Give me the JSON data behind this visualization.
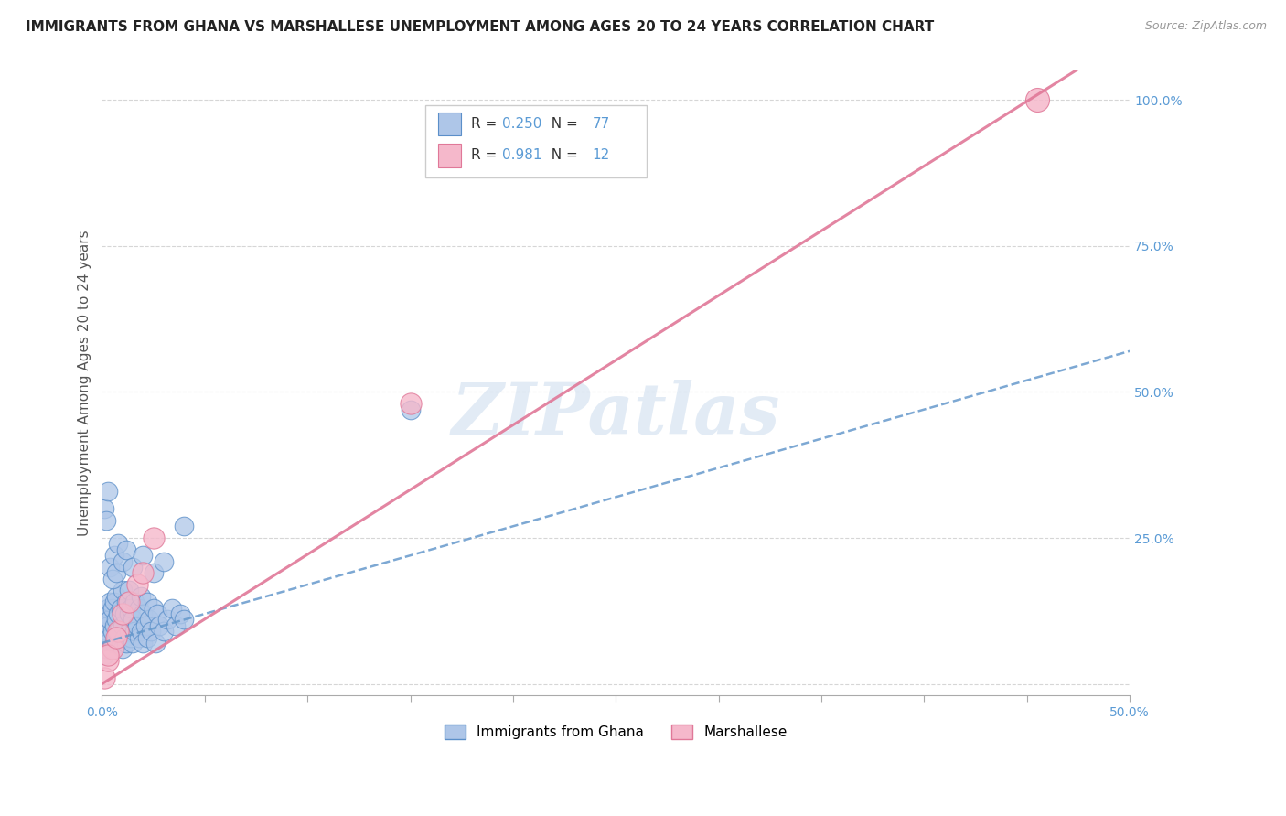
{
  "title": "IMMIGRANTS FROM GHANA VS MARSHALLESE UNEMPLOYMENT AMONG AGES 20 TO 24 YEARS CORRELATION CHART",
  "source": "Source: ZipAtlas.com",
  "ylabel": "Unemployment Among Ages 20 to 24 years",
  "xlim": [
    0.0,
    0.5
  ],
  "ylim": [
    -0.02,
    1.05
  ],
  "yticks": [
    0.0,
    0.25,
    0.5,
    0.75,
    1.0
  ],
  "ytick_labels": [
    "",
    "25.0%",
    "50.0%",
    "75.0%",
    "100.0%"
  ],
  "xtick_positions": [
    0.0,
    0.05,
    0.1,
    0.15,
    0.2,
    0.25,
    0.3,
    0.35,
    0.4,
    0.45,
    0.5
  ],
  "ghana_R": 0.25,
  "ghana_N": 77,
  "marshallese_R": 0.981,
  "marshallese_N": 12,
  "ghana_color": "#aec6e8",
  "ghana_edge_color": "#5b8fc9",
  "marshallese_color": "#f5b8cb",
  "marshallese_edge_color": "#e07898",
  "ghana_line_color": "#6699cc",
  "marshallese_line_color": "#e07898",
  "watermark": "ZIPatlas",
  "background_color": "#ffffff",
  "grid_color": "#cccccc",
  "title_fontsize": 11,
  "axis_label_fontsize": 11,
  "tick_color": "#5b9bd5",
  "ghana_scatter_x": [
    0.001,
    0.001,
    0.002,
    0.002,
    0.003,
    0.003,
    0.003,
    0.004,
    0.004,
    0.004,
    0.005,
    0.005,
    0.005,
    0.006,
    0.006,
    0.006,
    0.007,
    0.007,
    0.007,
    0.008,
    0.008,
    0.009,
    0.009,
    0.01,
    0.01,
    0.01,
    0.011,
    0.011,
    0.012,
    0.012,
    0.013,
    0.013,
    0.013,
    0.014,
    0.014,
    0.015,
    0.015,
    0.016,
    0.016,
    0.017,
    0.018,
    0.018,
    0.019,
    0.019,
    0.02,
    0.02,
    0.021,
    0.022,
    0.022,
    0.023,
    0.024,
    0.025,
    0.026,
    0.027,
    0.028,
    0.03,
    0.032,
    0.034,
    0.036,
    0.038,
    0.04,
    0.004,
    0.005,
    0.006,
    0.007,
    0.008,
    0.01,
    0.012,
    0.015,
    0.02,
    0.025,
    0.03,
    0.04,
    0.001,
    0.002,
    0.003,
    0.15
  ],
  "ghana_scatter_y": [
    0.05,
    0.1,
    0.06,
    0.12,
    0.07,
    0.1,
    0.13,
    0.08,
    0.11,
    0.14,
    0.06,
    0.09,
    0.13,
    0.07,
    0.1,
    0.14,
    0.08,
    0.11,
    0.15,
    0.09,
    0.12,
    0.07,
    0.13,
    0.06,
    0.1,
    0.16,
    0.08,
    0.12,
    0.07,
    0.14,
    0.09,
    0.12,
    0.16,
    0.08,
    0.13,
    0.07,
    0.11,
    0.09,
    0.14,
    0.1,
    0.08,
    0.13,
    0.09,
    0.15,
    0.07,
    0.12,
    0.1,
    0.08,
    0.14,
    0.11,
    0.09,
    0.13,
    0.07,
    0.12,
    0.1,
    0.09,
    0.11,
    0.13,
    0.1,
    0.12,
    0.11,
    0.2,
    0.18,
    0.22,
    0.19,
    0.24,
    0.21,
    0.23,
    0.2,
    0.22,
    0.19,
    0.21,
    0.27,
    0.3,
    0.28,
    0.33,
    0.47
  ],
  "marshallese_scatter_x": [
    0.001,
    0.003,
    0.005,
    0.008,
    0.01,
    0.013,
    0.017,
    0.02,
    0.025,
    0.15,
    0.003,
    0.007
  ],
  "marshallese_scatter_y": [
    0.01,
    0.04,
    0.06,
    0.09,
    0.12,
    0.14,
    0.17,
    0.19,
    0.25,
    0.48,
    0.05,
    0.08
  ],
  "ghana_trend_x0": 0.0,
  "ghana_trend_y0": 0.07,
  "ghana_trend_x1": 0.5,
  "ghana_trend_y1": 0.57,
  "marsh_trend_x0": 0.0,
  "marsh_trend_y0": 0.0,
  "marsh_trend_x1": 0.46,
  "marsh_trend_y1": 1.02
}
